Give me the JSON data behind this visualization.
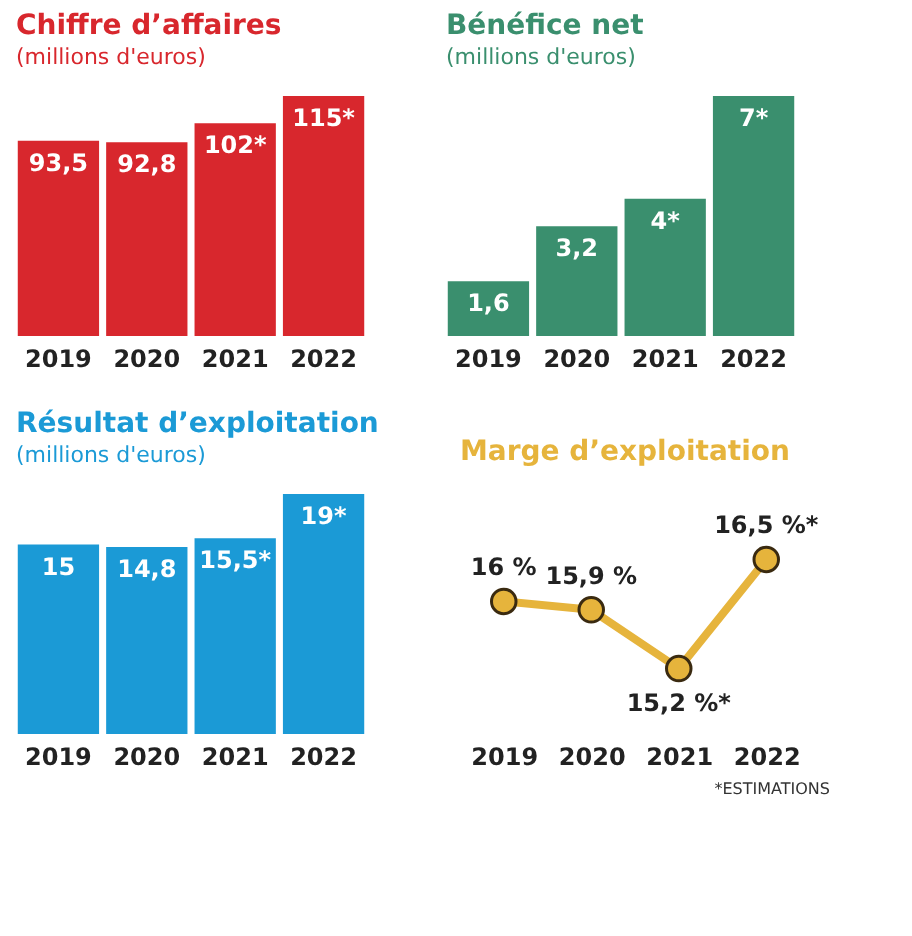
{
  "chart_data": [
    {
      "type": "bar",
      "title": "Chiffre d’affaires",
      "subtitle": "(millions d'euros)",
      "categories": [
        "2019",
        "2020",
        "2021",
        "2022"
      ],
      "values": [
        93.5,
        92.8,
        102,
        115
      ],
      "value_labels": [
        "93,5",
        "92,8",
        "102*",
        "115*"
      ],
      "color": "#d8272d",
      "tick_labels": "x"
    },
    {
      "type": "bar",
      "title": "Bénéfice net",
      "subtitle": "(millions d'euros)",
      "categories": [
        "2019",
        "2020",
        "2021",
        "2022"
      ],
      "values": [
        1.6,
        3.2,
        4,
        7
      ],
      "value_labels": [
        "1,6",
        "3,2",
        "4*",
        "7*"
      ],
      "color": "#3a8f6e",
      "tick_labels": "x"
    },
    {
      "type": "bar",
      "title": "Résultat d’exploitation",
      "subtitle": "(millions d'euros)",
      "categories": [
        "2019",
        "2020",
        "2021",
        "2022"
      ],
      "values": [
        15,
        14.8,
        15.5,
        19
      ],
      "value_labels": [
        "15",
        "14,8",
        "15,5*",
        "19*"
      ],
      "color": "#1b9ad6",
      "tick_labels": "x"
    },
    {
      "type": "line",
      "title": "Marge d’exploitation",
      "categories": [
        "2019",
        "2020",
        "2021",
        "2022"
      ],
      "values": [
        16,
        15.9,
        15.2,
        16.5
      ],
      "value_labels": [
        "16 %",
        "15,9 %",
        "15,2 %*",
        "16,5 %*"
      ],
      "color": "#e6b43c",
      "marker": "circle",
      "tick_labels": "x",
      "annotations": [
        "*ESTIMATIONS"
      ]
    }
  ]
}
